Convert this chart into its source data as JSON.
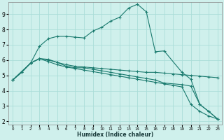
{
  "xlabel": "Humidex (Indice chaleur)",
  "bg_color": "#cff0ec",
  "grid_color": "#aaddd8",
  "line_color": "#1a7a6e",
  "xlim": [
    -0.5,
    23.5
  ],
  "ylim": [
    1.8,
    9.8
  ],
  "yticks": [
    2,
    3,
    4,
    5,
    6,
    7,
    8,
    9
  ],
  "xticks": [
    0,
    1,
    2,
    3,
    4,
    5,
    6,
    7,
    8,
    9,
    10,
    11,
    12,
    13,
    14,
    15,
    16,
    17,
    18,
    19,
    20,
    21,
    22,
    23
  ],
  "line1_x": [
    0,
    1,
    2,
    3,
    4,
    5,
    6,
    7,
    8,
    9,
    10,
    11,
    12,
    13,
    14,
    15,
    16,
    17,
    18,
    19,
    20,
    21,
    22,
    23
  ],
  "line1_y": [
    4.7,
    5.2,
    5.8,
    6.1,
    6.0,
    5.85,
    5.7,
    5.6,
    5.55,
    5.5,
    5.45,
    5.4,
    5.35,
    5.3,
    5.25,
    5.2,
    5.2,
    5.15,
    5.1,
    5.05,
    5.0,
    4.95,
    4.9,
    4.85
  ],
  "line2_x": [
    0,
    1,
    2,
    3,
    4,
    5,
    6,
    7,
    8,
    9,
    10,
    11,
    12,
    13,
    14,
    15,
    16,
    17,
    18,
    19,
    20,
    21,
    22,
    23
  ],
  "line2_y": [
    4.7,
    5.2,
    5.8,
    6.1,
    5.9,
    5.7,
    5.55,
    5.45,
    5.35,
    5.25,
    5.15,
    5.05,
    4.95,
    4.85,
    4.75,
    4.65,
    4.55,
    4.45,
    4.35,
    4.25,
    3.1,
    2.65,
    2.35,
    2.15
  ],
  "line3_x": [
    0,
    2,
    3,
    4,
    5,
    6,
    7,
    8,
    9,
    10,
    11,
    12,
    13,
    14,
    15,
    16,
    17,
    19,
    20,
    21,
    22,
    23
  ],
  "line3_y": [
    4.7,
    5.8,
    6.9,
    7.4,
    7.55,
    7.55,
    7.5,
    7.45,
    7.9,
    8.15,
    8.55,
    8.8,
    9.4,
    9.65,
    9.15,
    6.55,
    6.6,
    5.2,
    4.75,
    3.1,
    2.65,
    2.15
  ],
  "line4_x": [
    0,
    2,
    3,
    4,
    5,
    6,
    7,
    8,
    9,
    10,
    11,
    12,
    13,
    14,
    15,
    16,
    17,
    19,
    20,
    21,
    22,
    23
  ],
  "line4_y": [
    4.7,
    5.8,
    6.1,
    6.05,
    5.85,
    5.6,
    5.5,
    5.5,
    5.4,
    5.3,
    5.2,
    5.1,
    5.0,
    4.9,
    4.8,
    4.7,
    4.5,
    4.4,
    4.3,
    3.1,
    2.65,
    2.15
  ]
}
